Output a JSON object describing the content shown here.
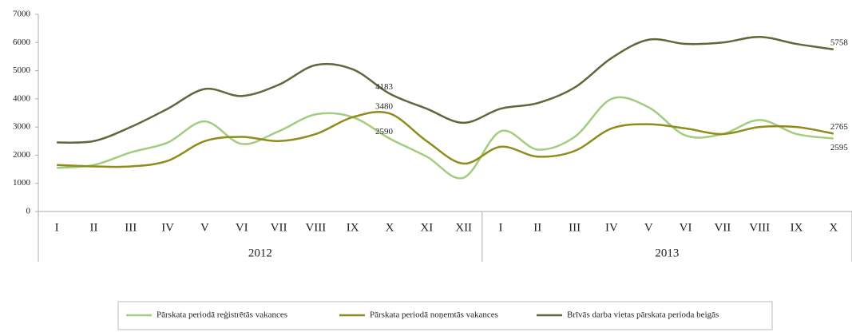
{
  "chart_data": {
    "type": "line",
    "category_groups": [
      {
        "label": "2012",
        "categories": [
          "I",
          "II",
          "III",
          "IV",
          "V",
          "VI",
          "VII",
          "VIII",
          "IX",
          "X",
          "XI",
          "XII"
        ]
      },
      {
        "label": "2013",
        "categories": [
          "I",
          "II",
          "III",
          "IV",
          "V",
          "VI",
          "VII",
          "VIII",
          "IX",
          "X"
        ]
      }
    ],
    "series": [
      {
        "name": "Pārskata periodā reģistrētās vakances",
        "color": "#a2cc7e",
        "values": [
          1550,
          1650,
          2100,
          2450,
          3200,
          2400,
          2850,
          3450,
          3350,
          2590,
          1950,
          1200,
          2850,
          2200,
          2650,
          4000,
          3700,
          2700,
          2750,
          3250,
          2750,
          2595
        ],
        "value_labels": [
          null,
          null,
          null,
          null,
          null,
          null,
          null,
          null,
          null,
          "2590",
          null,
          null,
          null,
          null,
          null,
          null,
          null,
          null,
          null,
          null,
          null,
          "2595"
        ]
      },
      {
        "name": "Pārskata periodā noņemtās vakances",
        "color": "#8f8c1c",
        "values": [
          1650,
          1600,
          1600,
          1800,
          2500,
          2650,
          2500,
          2750,
          3350,
          3480,
          2500,
          1700,
          2300,
          1950,
          2150,
          2950,
          3100,
          2950,
          2750,
          3000,
          3000,
          2765
        ],
        "value_labels": [
          null,
          null,
          null,
          null,
          null,
          null,
          null,
          null,
          null,
          "3480",
          null,
          null,
          null,
          null,
          null,
          null,
          null,
          null,
          null,
          null,
          null,
          "2765"
        ]
      },
      {
        "name": "Brīvās darba vietas pārskata perioda beigās",
        "color": "#5b6a3a",
        "values": [
          2450,
          2500,
          3000,
          3650,
          4350,
          4100,
          4500,
          5200,
          5050,
          4183,
          3650,
          3150,
          3650,
          3850,
          4400,
          5450,
          6100,
          5950,
          6000,
          6200,
          5950,
          5758
        ],
        "value_labels": [
          null,
          null,
          null,
          null,
          null,
          null,
          null,
          null,
          null,
          "4183",
          null,
          null,
          null,
          null,
          null,
          null,
          null,
          null,
          null,
          null,
          null,
          "5758"
        ]
      }
    ],
    "ylim": [
      0,
      7000
    ],
    "yticks": [
      0,
      1000,
      2000,
      3000,
      4000,
      5000,
      6000,
      7000
    ],
    "grid": false,
    "legend": "bottom"
  }
}
